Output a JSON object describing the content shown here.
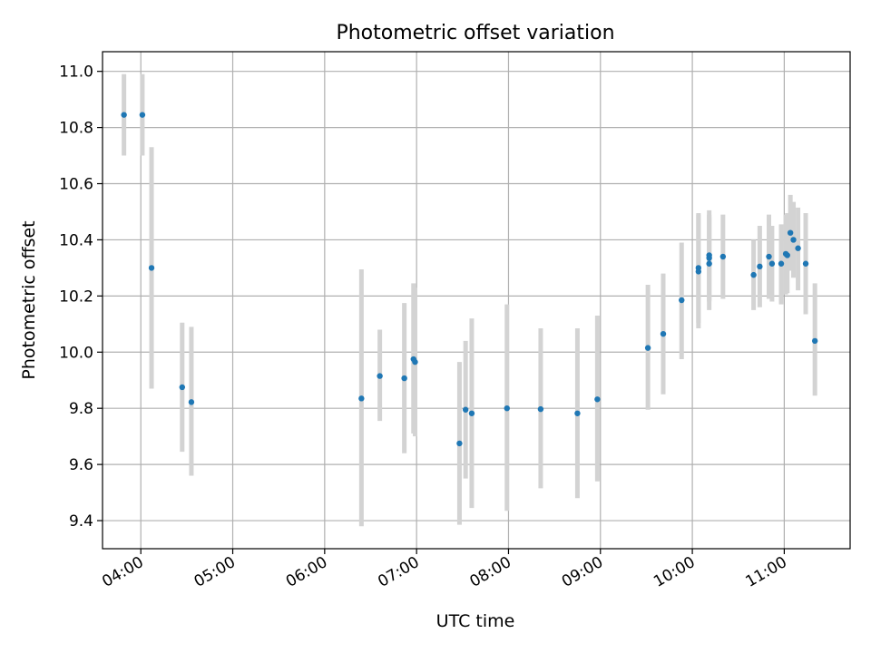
{
  "chart_data": {
    "type": "scatter",
    "title": "Photometric offset variation",
    "xlabel": "UTC time",
    "ylabel": "Photometric offset",
    "xlim": [
      "03:35",
      "11:43"
    ],
    "ylim": [
      9.3,
      11.07
    ],
    "grid": true,
    "x_ticks": [
      "04:00",
      "05:00",
      "06:00",
      "07:00",
      "08:00",
      "09:00",
      "10:00",
      "11:00"
    ],
    "y_ticks": [
      "9.4",
      "9.6",
      "9.8",
      "10.0",
      "10.2",
      "10.4",
      "10.6",
      "10.8",
      "11.0"
    ],
    "colors": {
      "point": "#1f77b4",
      "errorbar": "#d3d3d3",
      "grid": "#b0b0b0"
    },
    "points": [
      {
        "t": "03:49",
        "y": 10.845,
        "lo": 10.7,
        "hi": 10.99
      },
      {
        "t": "04:01",
        "y": 10.845,
        "lo": 10.7,
        "hi": 10.99
      },
      {
        "t": "04:07",
        "y": 10.3,
        "lo": 9.87,
        "hi": 10.73
      },
      {
        "t": "04:27",
        "y": 9.875,
        "lo": 9.645,
        "hi": 10.105
      },
      {
        "t": "04:33",
        "y": 9.822,
        "lo": 9.56,
        "hi": 10.09
      },
      {
        "t": "06:24",
        "y": 9.835,
        "lo": 9.38,
        "hi": 10.295
      },
      {
        "t": "06:36",
        "y": 9.915,
        "lo": 9.755,
        "hi": 10.08
      },
      {
        "t": "06:52",
        "y": 9.907,
        "lo": 9.64,
        "hi": 10.175
      },
      {
        "t": "06:58",
        "y": 9.975,
        "lo": 9.71,
        "hi": 10.245
      },
      {
        "t": "06:59",
        "y": 9.965,
        "lo": 9.7,
        "hi": 10.23
      },
      {
        "t": "07:28",
        "y": 9.675,
        "lo": 9.385,
        "hi": 9.965
      },
      {
        "t": "07:32",
        "y": 9.795,
        "lo": 9.55,
        "hi": 10.04
      },
      {
        "t": "07:36",
        "y": 9.782,
        "lo": 9.445,
        "hi": 10.12
      },
      {
        "t": "07:59",
        "y": 9.8,
        "lo": 9.435,
        "hi": 10.17
      },
      {
        "t": "08:21",
        "y": 9.797,
        "lo": 9.515,
        "hi": 10.085
      },
      {
        "t": "08:45",
        "y": 9.782,
        "lo": 9.48,
        "hi": 10.085
      },
      {
        "t": "08:58",
        "y": 9.832,
        "lo": 9.54,
        "hi": 10.13
      },
      {
        "t": "09:31",
        "y": 10.015,
        "lo": 9.795,
        "hi": 10.24
      },
      {
        "t": "09:41",
        "y": 10.065,
        "lo": 9.85,
        "hi": 10.28
      },
      {
        "t": "09:53",
        "y": 10.185,
        "lo": 9.975,
        "hi": 10.39
      },
      {
        "t": "10:04",
        "y": 10.3,
        "lo": 10.105,
        "hi": 10.495
      },
      {
        "t": "10:04",
        "y": 10.287,
        "lo": 10.085,
        "hi": 10.49
      },
      {
        "t": "10:11",
        "y": 10.315,
        "lo": 10.15,
        "hi": 10.48
      },
      {
        "t": "10:11",
        "y": 10.345,
        "lo": 10.185,
        "hi": 10.505
      },
      {
        "t": "10:11",
        "y": 10.335,
        "lo": 10.18,
        "hi": 10.49
      },
      {
        "t": "10:20",
        "y": 10.34,
        "lo": 10.19,
        "hi": 10.49
      },
      {
        "t": "10:40",
        "y": 10.275,
        "lo": 10.15,
        "hi": 10.4
      },
      {
        "t": "10:44",
        "y": 10.305,
        "lo": 10.16,
        "hi": 10.45
      },
      {
        "t": "10:50",
        "y": 10.34,
        "lo": 10.19,
        "hi": 10.49
      },
      {
        "t": "10:52",
        "y": 10.315,
        "lo": 10.18,
        "hi": 10.45
      },
      {
        "t": "10:58",
        "y": 10.315,
        "lo": 10.17,
        "hi": 10.455
      },
      {
        "t": "11:01",
        "y": 10.35,
        "lo": 10.205,
        "hi": 10.49
      },
      {
        "t": "11:02",
        "y": 10.345,
        "lo": 10.21,
        "hi": 10.495
      },
      {
        "t": "11:04",
        "y": 10.425,
        "lo": 10.29,
        "hi": 10.56
      },
      {
        "t": "11:06",
        "y": 10.4,
        "lo": 10.265,
        "hi": 10.535
      },
      {
        "t": "11:09",
        "y": 10.37,
        "lo": 10.22,
        "hi": 10.515
      },
      {
        "t": "11:14",
        "y": 10.315,
        "lo": 10.135,
        "hi": 10.495
      },
      {
        "t": "11:20",
        "y": 10.04,
        "lo": 9.845,
        "hi": 10.245
      }
    ]
  }
}
